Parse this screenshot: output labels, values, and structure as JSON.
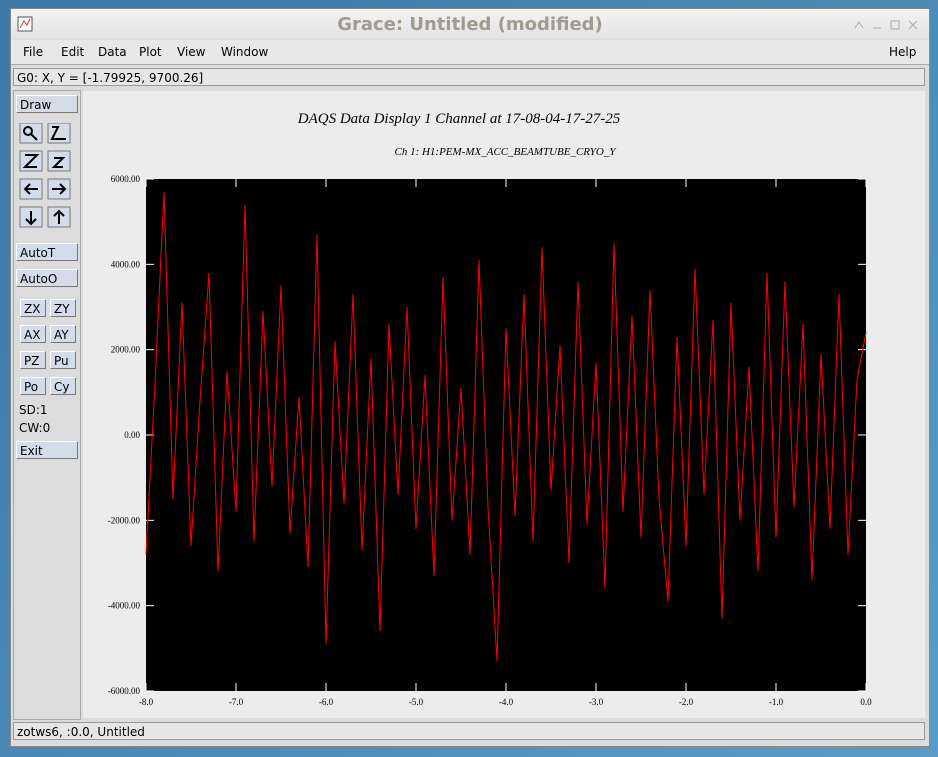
{
  "window": {
    "title": "Grace: Untitled (modified)"
  },
  "menu": {
    "items": [
      "File",
      "Edit",
      "Data",
      "Plot",
      "View",
      "Window"
    ],
    "help": "Help"
  },
  "status_top": "G0: X, Y = [-1.79925, 9700.26]",
  "toolbar": {
    "draw": "Draw",
    "auto": [
      "AutoT",
      "AutoO"
    ],
    "pairs": [
      "ZX",
      "ZY",
      "AX",
      "AY",
      "PZ",
      "Pu",
      "Po",
      "Cy"
    ],
    "info": [
      "SD:1",
      "CW:0"
    ],
    "exit": "Exit"
  },
  "status_bottom": "zotws6, :0.0, Untitled",
  "chart_data": {
    "type": "line",
    "title": "DAQS Data Display 1 Channel at 17-08-04-17-27-25",
    "subtitle": "Ch 1:  H1:PEM-MX_ACC_BEAMTUBE_CRYO_Y",
    "color": "#ff0000",
    "background": "#000000",
    "xlim": [
      -8,
      0
    ],
    "ylim": [
      -6000,
      6000
    ],
    "xticks": [
      {
        "value": -8,
        "label": "-8.0"
      },
      {
        "value": -7,
        "label": "-7.0"
      },
      {
        "value": -6,
        "label": "-6.0"
      },
      {
        "value": -5,
        "label": "-5.0"
      },
      {
        "value": -4,
        "label": "-4.0"
      },
      {
        "value": -3,
        "label": "-3.0"
      },
      {
        "value": -2,
        "label": "-2.0"
      },
      {
        "value": -1,
        "label": "-1.0"
      },
      {
        "value": 0,
        "label": "0.0"
      }
    ],
    "yticks": [
      {
        "value": -6000,
        "label": "-6000.00"
      },
      {
        "value": -4000,
        "label": "-4000.00"
      },
      {
        "value": -2000,
        "label": "-2000.00"
      },
      {
        "value": 0,
        "label": "0.00"
      },
      {
        "value": 2000,
        "label": "2000.00"
      },
      {
        "value": 4000,
        "label": "4000.00"
      },
      {
        "value": 6000,
        "label": "6000.00"
      }
    ],
    "x": [
      -8.0,
      -7.9,
      -7.8,
      -7.7,
      -7.6,
      -7.5,
      -7.4,
      -7.3,
      -7.2,
      -7.1,
      -7.0,
      -6.9,
      -6.8,
      -6.7,
      -6.6,
      -6.5,
      -6.4,
      -6.3,
      -6.2,
      -6.1,
      -6.0,
      -5.9,
      -5.8,
      -5.7,
      -5.6,
      -5.5,
      -5.4,
      -5.3,
      -5.2,
      -5.1,
      -5.0,
      -4.9,
      -4.8,
      -4.7,
      -4.6,
      -4.5,
      -4.4,
      -4.3,
      -4.2,
      -4.1,
      -4.0,
      -3.9,
      -3.8,
      -3.7,
      -3.6,
      -3.5,
      -3.4,
      -3.3,
      -3.2,
      -3.1,
      -3.0,
      -2.9,
      -2.8,
      -2.7,
      -2.6,
      -2.5,
      -2.4,
      -2.3,
      -2.2,
      -2.1,
      -2.0,
      -1.9,
      -1.8,
      -1.7,
      -1.6,
      -1.5,
      -1.4,
      -1.3,
      -1.2,
      -1.1,
      -1.0,
      -0.9,
      -0.8,
      -0.7,
      -0.6,
      -0.5,
      -0.4,
      -0.3,
      -0.2,
      -0.1,
      0.0
    ],
    "values": [
      -2800,
      1200,
      5700,
      -1500,
      3100,
      -2600,
      800,
      3800,
      -3200,
      1500,
      -1800,
      5400,
      -2500,
      2900,
      -1200,
      3500,
      -2300,
      900,
      -3100,
      4700,
      -4900,
      2200,
      -1600,
      3300,
      -2700,
      1800,
      -4600,
      2600,
      -1400,
      3000,
      -2200,
      1400,
      -3300,
      3700,
      -2000,
      1100,
      -2800,
      4100,
      -1700,
      -5300,
      2500,
      -1900,
      3300,
      -2500,
      4400,
      -1300,
      2100,
      -3000,
      3600,
      -2100,
      1700,
      -3600,
      4500,
      -1800,
      2800,
      -2400,
      3400,
      -1500,
      -3900,
      2300,
      -2600,
      3900,
      -1400,
      2700,
      -4300,
      3100,
      -2000,
      1600,
      -3200,
      3800,
      -2400,
      3600,
      -1700,
      2600,
      -3400,
      1900,
      -2200,
      3300,
      -2800,
      1300,
      2400
    ]
  }
}
